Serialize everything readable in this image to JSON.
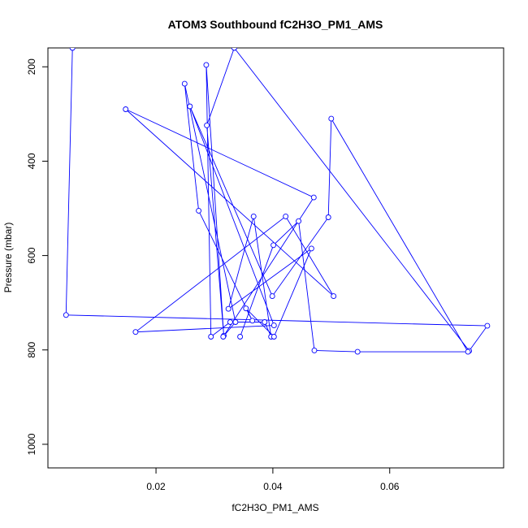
{
  "chart_data": {
    "type": "line",
    "title": "ATOM3 Southbound fC2H3O_PM1_AMS",
    "xlabel": "fC2H3O_PM1_AMS",
    "ylabel": "Pressure (mbar)",
    "xlim": [
      0.0015,
      0.0795
    ],
    "ylim": [
      1050,
      160
    ],
    "y_reversed": true,
    "x_ticks": [
      0.02,
      0.04,
      0.06
    ],
    "x_tick_labels": [
      "0.02",
      "0.04",
      "0.06"
    ],
    "y_ticks": [
      200,
      400,
      600,
      800,
      1000
    ],
    "y_tick_labels": [
      "200",
      "400",
      "600",
      "800",
      "1000"
    ],
    "grid": false,
    "legend": "none",
    "line_color": "#0000ff",
    "marker": "open-circle",
    "series": [
      {
        "points": [
          [
            0.0057,
            160
          ],
          [
            0.0046,
            726
          ],
          [
            0.0767,
            749
          ],
          [
            0.0736,
            802
          ],
          [
            0.0334,
            160
          ],
          [
            0.0287,
            324
          ],
          [
            0.0316,
            770
          ],
          [
            0.0286,
            196
          ],
          [
            0.0294,
            772
          ],
          [
            0.0327,
            741
          ],
          [
            0.0386,
            741
          ],
          [
            0.0397,
            772
          ],
          [
            0.0367,
            517
          ],
          [
            0.0324,
            713
          ],
          [
            0.0466,
            585
          ],
          [
            0.0402,
            772
          ],
          [
            0.0354,
            712
          ],
          [
            0.0365,
            738
          ],
          [
            0.0273,
            505
          ],
          [
            0.0249,
            236
          ],
          [
            0.0336,
            741
          ],
          [
            0.0315,
            772
          ],
          [
            0.047,
            477
          ],
          [
            0.0148,
            290
          ],
          [
            0.0504,
            686
          ],
          [
            0.0422,
            517
          ],
          [
            0.0165,
            762
          ],
          [
            0.0402,
            748
          ],
          [
            0.0258,
            284
          ],
          [
            0.0399,
            686
          ],
          [
            0.0495,
            519
          ],
          [
            0.05,
            310
          ],
          [
            0.0734,
            804
          ],
          [
            0.0545,
            804
          ],
          [
            0.0471,
            801
          ],
          [
            0.0444,
            527
          ],
          [
            0.0401,
            578
          ],
          [
            0.0344,
            772
          ]
        ]
      }
    ]
  }
}
